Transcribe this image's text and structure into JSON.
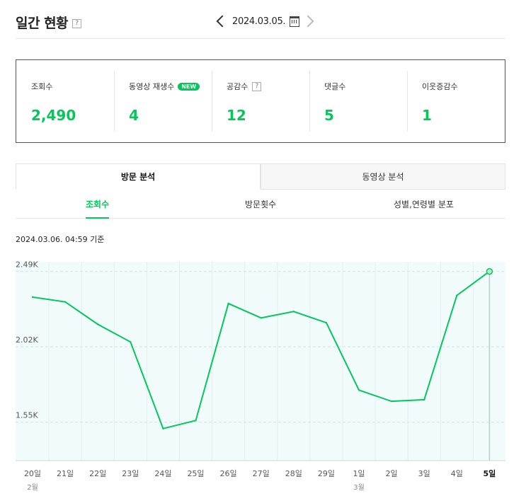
{
  "header": {
    "title": "일간 현황",
    "help": "?",
    "date": "2024.03.05."
  },
  "stats": [
    {
      "label": "조회수",
      "value": "2,490"
    },
    {
      "label": "동영상 재생수",
      "badge": "NEW",
      "value": "4"
    },
    {
      "label": "공감수",
      "help": "?",
      "value": "12"
    },
    {
      "label": "댓글수",
      "value": "5"
    },
    {
      "label": "이웃증감수",
      "value": "1"
    }
  ],
  "tabs": [
    "방문 분석",
    "동영상 분석"
  ],
  "subtabs": [
    "조회수",
    "방문횟수",
    "성별,연령별 분포"
  ],
  "as_of": "2024.03.06. 04:59 기준",
  "colors": {
    "accent": "#03c75a",
    "plot_bg": "#f2fbfc"
  },
  "chart_data": {
    "type": "line",
    "categories": [
      "20일",
      "21일",
      "22일",
      "23일",
      "24일",
      "25일",
      "26일",
      "27일",
      "28일",
      "29일",
      "1일",
      "2일",
      "3일",
      "4일",
      "5일"
    ],
    "month_labels": [
      {
        "index": 0,
        "label": "2월"
      },
      {
        "index": 10,
        "label": "3월"
      }
    ],
    "values": [
      2330,
      2300,
      2160,
      2050,
      1510,
      1560,
      2290,
      2200,
      2240,
      2170,
      1750,
      1680,
      1690,
      2340,
      2490
    ],
    "yticks": [
      {
        "value": 1550,
        "label": "1.55K"
      },
      {
        "value": 2020,
        "label": "2.02K"
      },
      {
        "value": 2490,
        "label": "2.49K"
      }
    ],
    "ylim": [
      1310,
      2550
    ],
    "highlight_index": 14,
    "grid": true
  }
}
